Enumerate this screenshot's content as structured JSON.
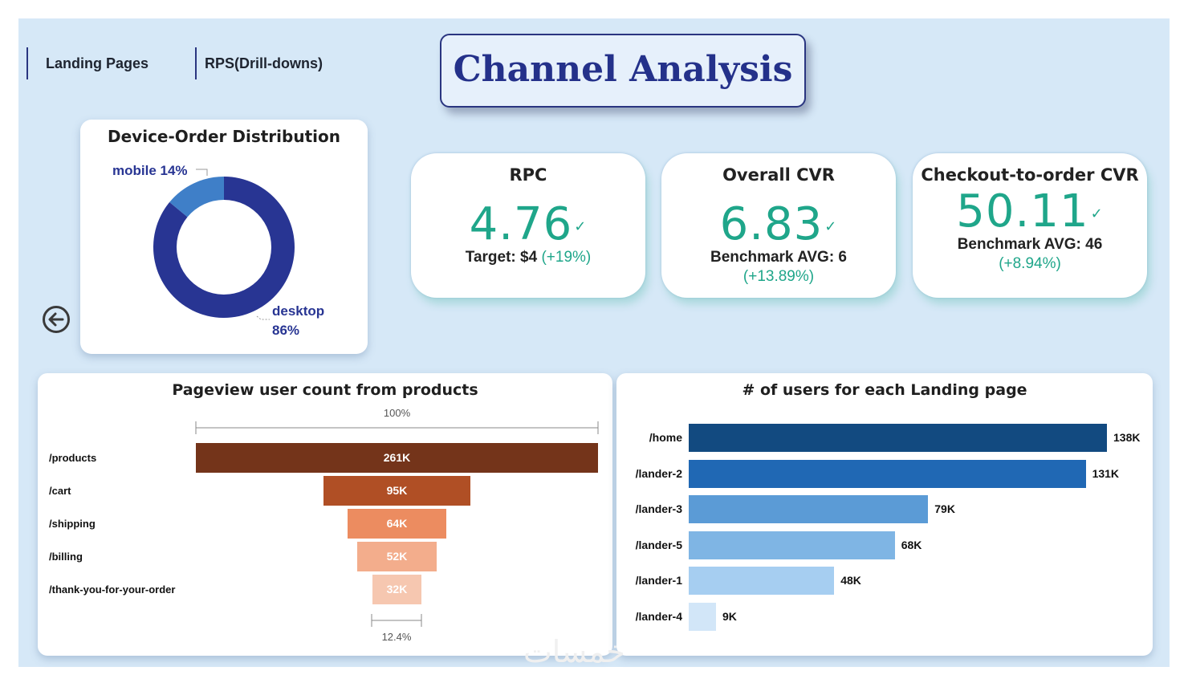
{
  "nav": {
    "tab1": "Landing Pages",
    "tab2": "RPS(Drill-downs)"
  },
  "title": "Channel Analysis",
  "kpis": [
    {
      "label": "RPC",
      "value": "4.76",
      "sub": "Target: $4",
      "pct": "(+19%)"
    },
    {
      "label": "Overall CVR",
      "value": "6.83",
      "sub": "Benchmark AVG: 6",
      "pct": "(+13.89%)"
    },
    {
      "label": "Checkout-to-order CVR",
      "value": "50.11",
      "sub": "Benchmark AVG: 46",
      "pct": "(+8.94%)"
    }
  ],
  "check_glyph": "✓",
  "colors": {
    "accent_green": "#1fa68a",
    "title_navy": "#24318a",
    "donut_desktop": "#283593",
    "donut_mobile": "#3f7fc8"
  },
  "chart_data": [
    {
      "type": "pie",
      "title": "Device-Order Distribution",
      "categories": [
        "desktop",
        "mobile"
      ],
      "values": [
        86,
        14
      ],
      "labels": {
        "mobile": "mobile 14%",
        "desktop_name": "desktop",
        "desktop_pct": "86%"
      }
    },
    {
      "type": "funnel",
      "title": "Pageview user count from products",
      "categories": [
        "/products",
        "/cart",
        "/shipping",
        "/billing",
        "/thank-you-for-your-order"
      ],
      "values": [
        261000,
        95000,
        64000,
        52000,
        32000
      ],
      "value_labels": [
        "261K",
        "95K",
        "64K",
        "52K",
        "32K"
      ],
      "colors": [
        "#74341a",
        "#b04f25",
        "#ec8c60",
        "#f3ad8c",
        "#f6c7b0"
      ],
      "top_pct": "100%",
      "bottom_pct": "12.4%"
    },
    {
      "type": "bar",
      "orientation": "horizontal",
      "title": "# of users for each Landing page",
      "categories": [
        "/home",
        "/lander-2",
        "/lander-3",
        "/lander-5",
        "/lander-1",
        "/lander-4"
      ],
      "values": [
        138000,
        131000,
        79000,
        68000,
        48000,
        9000
      ],
      "value_labels": [
        "138K",
        "131K",
        "79K",
        "68K",
        "48K",
        "9K"
      ],
      "colors": [
        "#124a80",
        "#2068b4",
        "#5b9bd6",
        "#7fb5e4",
        "#a6cef1",
        "#d2e6f8"
      ],
      "xlim": [
        0,
        138000
      ]
    }
  ],
  "watermark": "خمسات"
}
